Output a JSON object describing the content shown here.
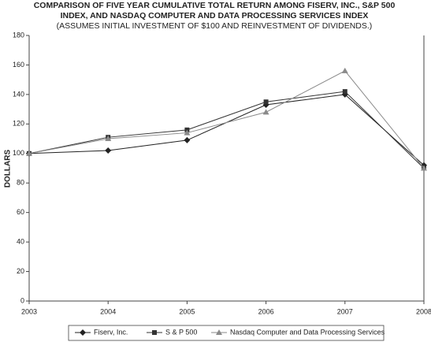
{
  "chart_data": {
    "type": "line",
    "title": [
      "COMPARISON OF FIVE YEAR CUMULATIVE TOTAL RETURN AMONG FISERV, INC., S&P 500",
      "INDEX, AND NASDAQ COMPUTER AND DATA PROCESSING SERVICES INDEX"
    ],
    "subtitle": "(ASSUMES INITIAL INVESTMENT OF $100 AND REINVESTMENT OF DIVIDENDS.)",
    "y_label": "DOLLARS",
    "categories": [
      "2003",
      "2004",
      "2005",
      "2006",
      "2007",
      "2008"
    ],
    "series": [
      {
        "name": "Fiserv, Inc.",
        "color": "#222222",
        "marker": "diamond",
        "values": [
          100,
          102,
          109,
          133,
          140,
          92
        ]
      },
      {
        "name": "S & P 500",
        "color": "#333333",
        "marker": "square",
        "values": [
          100,
          111,
          116,
          135,
          142,
          90
        ]
      },
      {
        "name": "Nasdaq Computer and Data Processing Services",
        "color": "#8a8a8a",
        "marker": "triangle",
        "values": [
          100,
          110,
          114,
          128,
          156,
          90
        ]
      }
    ],
    "ylim": [
      0,
      180
    ],
    "yticks": [
      0,
      20,
      40,
      60,
      80,
      100,
      120,
      140,
      160,
      180
    ],
    "grid": false,
    "legend": "bottom"
  }
}
